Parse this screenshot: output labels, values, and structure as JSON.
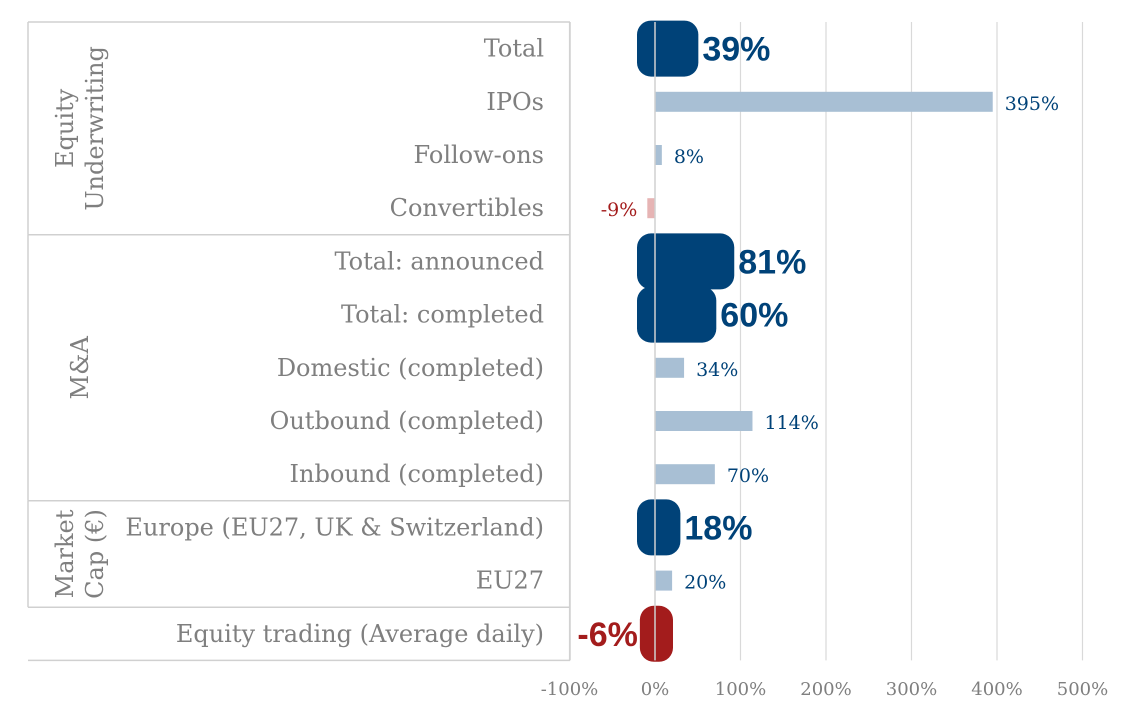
{
  "chart_data": {
    "type": "bar",
    "orientation": "horizontal",
    "groups": [
      {
        "name": "Equity Underwriting",
        "lines": [
          "Equity",
          "Underwriting"
        ],
        "categories": [
          "Total",
          "IPOs",
          "Follow-ons",
          "Convertibles"
        ]
      },
      {
        "name": "M&A",
        "lines": [
          "M&A"
        ],
        "categories": [
          "Total: announced",
          "Total: completed",
          "Domestic (completed)",
          "Outbound (completed)",
          "Inbound (completed)"
        ]
      },
      {
        "name": "Market Cap (€)",
        "lines": [
          "Market",
          "Cap (€)"
        ],
        "categories": [
          "Europe (EU27, UK & Switzerland)",
          "EU27"
        ]
      },
      {
        "name": "",
        "lines": [],
        "categories": [
          "Equity trading (Average daily)"
        ]
      }
    ],
    "categories": [
      "Total",
      "IPOs",
      "Follow-ons",
      "Convertibles",
      "Total: announced",
      "Total: completed",
      "Domestic (completed)",
      "Outbound (completed)",
      "Inbound (completed)",
      "Europe (EU27, UK & Switzerland)",
      "EU27",
      "Equity trading (Average daily)"
    ],
    "values": [
      39,
      395,
      8,
      -9,
      81,
      60,
      34,
      114,
      70,
      18,
      20,
      -6
    ],
    "labels": [
      "39%",
      "395%",
      "8%",
      "-9%",
      "81%",
      "60%",
      "34%",
      "114%",
      "70%",
      "18%",
      "20%",
      "-6%"
    ],
    "highlight": [
      true,
      false,
      false,
      false,
      true,
      true,
      false,
      false,
      false,
      true,
      false,
      true
    ],
    "xlim": [
      -100,
      500
    ],
    "xticks": [
      -100,
      0,
      100,
      200,
      300,
      400,
      500
    ],
    "xtick_labels": [
      "-100%",
      "0%",
      "100%",
      "200%",
      "300%",
      "400%",
      "500%"
    ],
    "grid": true,
    "colors": {
      "highlight_positive": "#004278",
      "highlight_negative": "#a31c1c",
      "minor_positive": "#a8bfd4",
      "minor_negative": "#e6b4b4",
      "label_positive": "#004278",
      "label_negative": "#a31c1c"
    }
  }
}
